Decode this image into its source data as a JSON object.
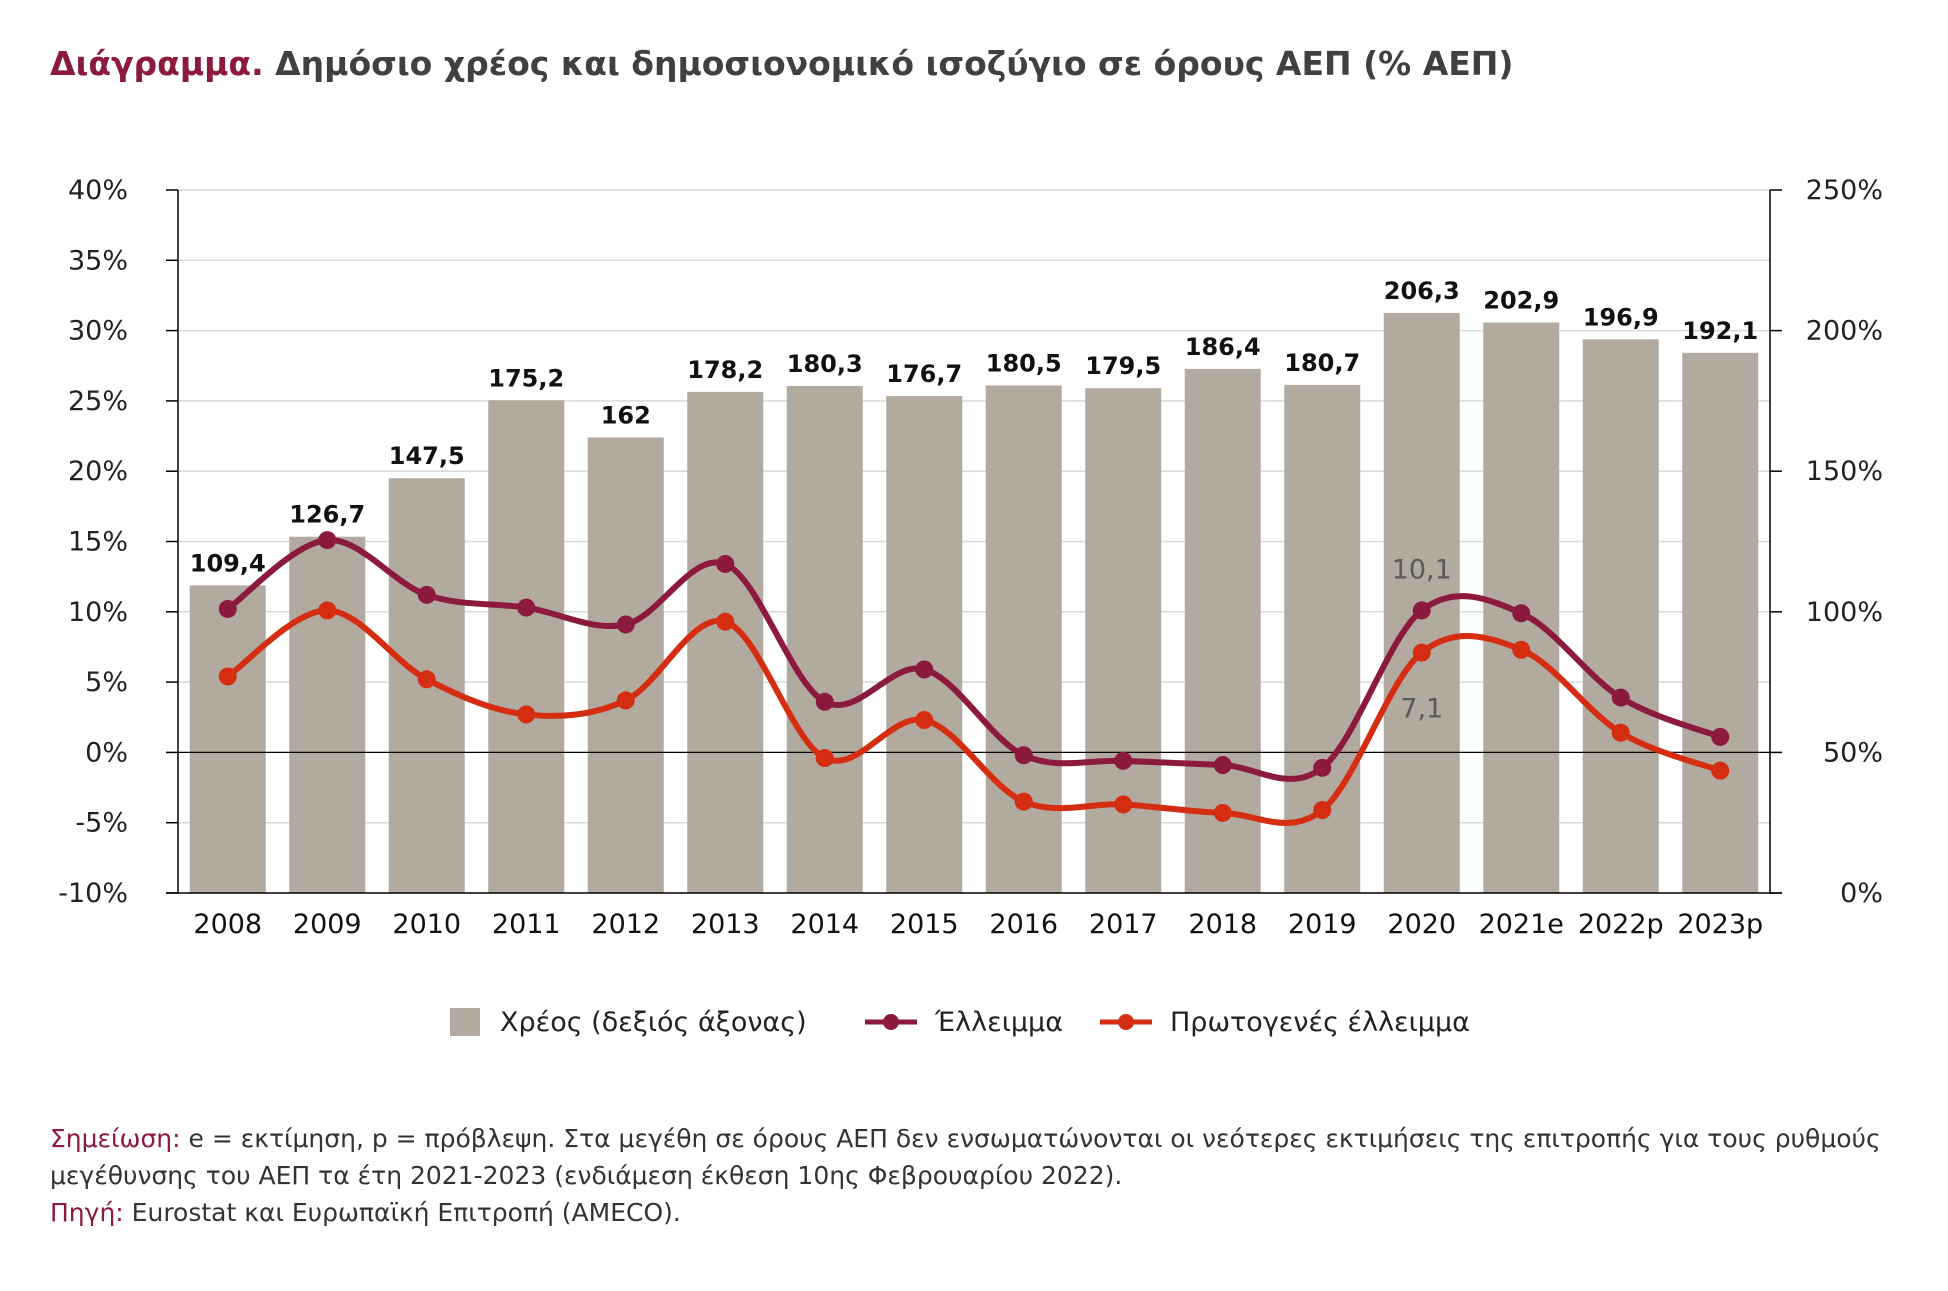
{
  "title": {
    "prefix": "Διάγραμμα.",
    "text": "Δημόσιο χρέος και δημοσιονομικό ισοζύγιο σε όρους ΑΕΠ (% ΑΕΠ)"
  },
  "colors": {
    "debt": "#b2aa9f",
    "deficit": "#8b1a3c",
    "primary_deficit": "#d42d12",
    "accent": "#8b1a3c",
    "axis": "#000000",
    "grid": "#d9d9d9",
    "label_gray": "#595959"
  },
  "chart_data": {
    "type": "bar",
    "categories": [
      "2008",
      "2009",
      "2010",
      "2011",
      "2012",
      "2013",
      "2014",
      "2015",
      "2016",
      "2017",
      "2018",
      "2019",
      "2020",
      "2021e",
      "2022p",
      "2023p"
    ],
    "series": [
      {
        "name": "Χρέος (δεξιός άξονας)",
        "type": "bar",
        "axis": "right",
        "values": [
          109.4,
          126.7,
          147.5,
          175.2,
          162,
          178.2,
          180.3,
          176.7,
          180.5,
          179.5,
          186.4,
          180.7,
          206.3,
          202.9,
          196.9,
          192.1
        ],
        "labels": [
          "109,4",
          "126,7",
          "147,5",
          "175,2",
          "162",
          "178,2",
          "180,3",
          "176,7",
          "180,5",
          "179,5",
          "186,4",
          "180,7",
          "206,3",
          "202,9",
          "196,9",
          "192,1"
        ]
      },
      {
        "name": "Έλλειμμα",
        "type": "line",
        "axis": "left",
        "values": [
          10.2,
          15.1,
          11.2,
          10.3,
          9.1,
          13.4,
          3.6,
          5.9,
          -0.2,
          -0.6,
          -0.9,
          -1.1,
          10.1,
          9.9,
          3.9,
          1.1
        ]
      },
      {
        "name": "Πρωτογενές έλλειμμα",
        "type": "line",
        "axis": "left",
        "values": [
          5.4,
          10.1,
          5.2,
          2.7,
          3.7,
          9.3,
          -0.4,
          2.3,
          -3.5,
          -3.7,
          -4.3,
          -4.1,
          7.1,
          7.3,
          1.4,
          -1.3
        ]
      }
    ],
    "annotations": [
      {
        "series": "Έλλειμμα",
        "index": 12,
        "text": "10,1"
      },
      {
        "series": "Πρωτογενές έλλειμμα",
        "index": 12,
        "text": "7,1"
      }
    ],
    "left_axis": {
      "ylim": [
        -10,
        40
      ],
      "ticks": [
        40,
        35,
        30,
        25,
        20,
        15,
        10,
        5,
        0,
        -5,
        -10
      ],
      "tick_labels": [
        "40%",
        "35%",
        "30%",
        "25%",
        "20%",
        "15%",
        "10%",
        "5%",
        "0%",
        "-5%",
        "-10%"
      ]
    },
    "right_axis": {
      "ylim": [
        0,
        250
      ],
      "ticks": [
        250,
        200,
        150,
        100,
        50,
        0
      ],
      "tick_labels": [
        "250%",
        "200%",
        "150%",
        "100%",
        "50%",
        "0%"
      ]
    },
    "grid": true,
    "legend_position": "bottom"
  },
  "notes": {
    "note_label": "Σημείωση:",
    "note_text": "e = εκτίμηση, p = πρόβλεψη. Στα μεγέθη σε όρους ΑΕΠ δεν ενσωματώνονται οι νεότερες εκτιμήσεις της επιτροπής για τους ρυθμούς μεγέθυνσης του ΑΕΠ τα έτη 2021-2023 (ενδιάμεση έκθεση 10ης Φεβρουαρίου 2022).",
    "source_label": "Πηγή:",
    "source_text": "Eurostat και Ευρωπαϊκή Επιτροπή (AMECO)."
  }
}
